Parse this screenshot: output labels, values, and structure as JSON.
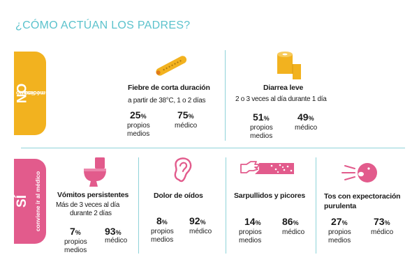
{
  "title": "¿CÓMO ACTÚAN LOS PADRES?",
  "colors": {
    "accent": "#5bc2cc",
    "no": "#f2b21f",
    "si": "#e25b8c"
  },
  "sections": {
    "no": {
      "label": "NO",
      "sublabel_1": "es necesario",
      "sublabel_2": "ir al médico"
    },
    "si": {
      "label": "SÍ",
      "sublabel": "conviene ir al médico"
    }
  },
  "items": [
    {
      "icon": "thermometer-icon",
      "title": "Fiebre de corta duración",
      "desc": [
        "a partir de 38°C, 1 o 2 días"
      ],
      "stats": [
        {
          "value": "25",
          "unit": "%",
          "label": [
            "propios",
            "medios"
          ]
        },
        {
          "value": "75",
          "unit": "%",
          "label": [
            "médico"
          ]
        }
      ]
    },
    {
      "icon": "toilet-paper-icon",
      "title": "Diarrea leve",
      "desc": [
        "2 o 3 veces al día durante 1 día"
      ],
      "stats": [
        {
          "value": "51",
          "unit": "%",
          "label": [
            "propios",
            "medios"
          ]
        },
        {
          "value": "49",
          "unit": "%",
          "label": [
            "médico"
          ]
        }
      ]
    },
    {
      "icon": "toilet-icon",
      "title": "Vómitos persistentes",
      "desc": [
        "Más de 3 veces al día",
        "durante 2 días"
      ],
      "stats": [
        {
          "value": "7",
          "unit": "%",
          "label": [
            "propios",
            "medios"
          ]
        },
        {
          "value": "93",
          "unit": "%",
          "label": [
            "médico"
          ]
        }
      ]
    },
    {
      "icon": "ear-icon",
      "title": "Dolor de oídos",
      "desc": [],
      "stats": [
        {
          "value": "8",
          "unit": "%",
          "label": [
            "propios",
            "medios"
          ]
        },
        {
          "value": "92",
          "unit": "%",
          "label": [
            "médico"
          ]
        }
      ]
    },
    {
      "icon": "rash-arm-icon",
      "title": "Sarpullidos y picores",
      "desc": [],
      "stats": [
        {
          "value": "14",
          "unit": "%",
          "label": [
            "propios",
            "medios"
          ]
        },
        {
          "value": "86",
          "unit": "%",
          "label": [
            "médico"
          ]
        }
      ]
    },
    {
      "icon": "coughing-face-icon",
      "title": [
        "Tos con expectoración",
        "purulenta"
      ],
      "desc": [],
      "stats": [
        {
          "value": "27",
          "unit": "%",
          "label": [
            "propios",
            "medios"
          ]
        },
        {
          "value": "73",
          "unit": "%",
          "label": [
            "médico"
          ]
        }
      ]
    }
  ]
}
